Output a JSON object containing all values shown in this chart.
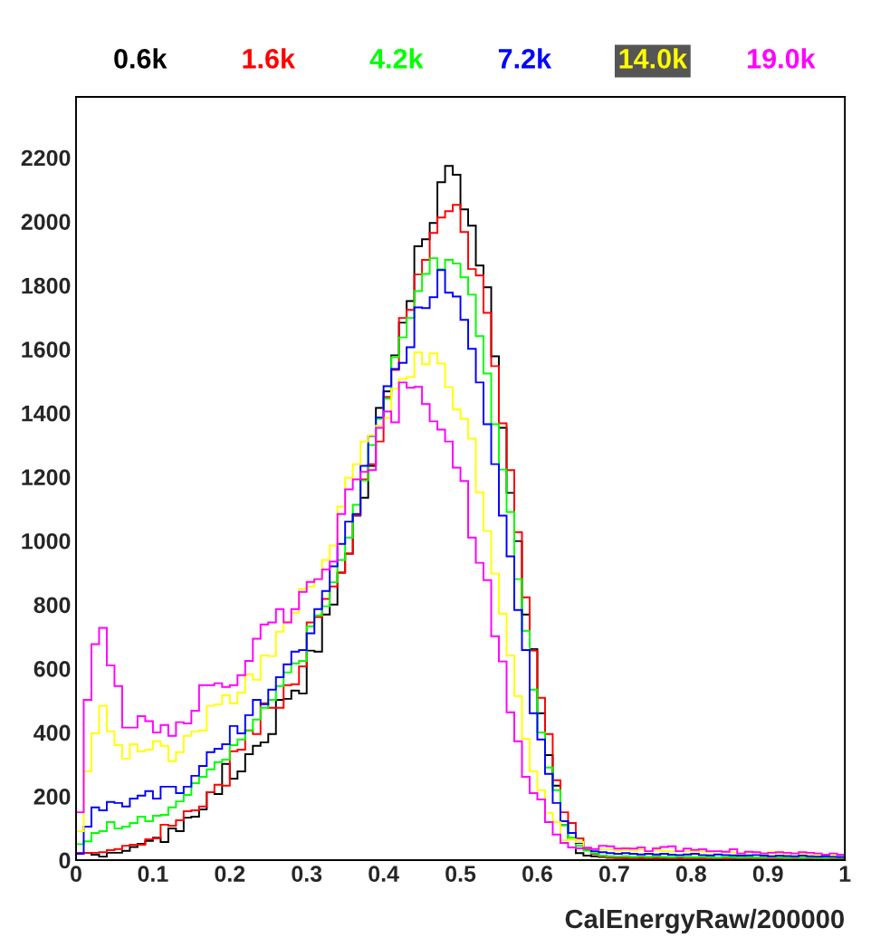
{
  "chart_data": {
    "type": "histogram",
    "xlabel": "CalEnergyRaw/200000",
    "bins": [
      0,
      0.01,
      0.02,
      0.03,
      0.04,
      0.05,
      0.06,
      0.07,
      0.08,
      0.09,
      0.1,
      0.11,
      0.12,
      0.13,
      0.14,
      0.15,
      0.16,
      0.17,
      0.18,
      0.19,
      0.2,
      0.21,
      0.22,
      0.23,
      0.24,
      0.25,
      0.26,
      0.27,
      0.28,
      0.29,
      0.3,
      0.31,
      0.32,
      0.33,
      0.34,
      0.35,
      0.36,
      0.37,
      0.38,
      0.39,
      0.4,
      0.41,
      0.42,
      0.43,
      0.44,
      0.45,
      0.46,
      0.47,
      0.48,
      0.49,
      0.5,
      0.51,
      0.52,
      0.53,
      0.54,
      0.55,
      0.56,
      0.57,
      0.58,
      0.59,
      0.6,
      0.61,
      0.62,
      0.63,
      0.64,
      0.65,
      0.66,
      0.67,
      0.68,
      0.69,
      0.7,
      0.71,
      0.72,
      0.73,
      0.74,
      0.75,
      0.76,
      0.77,
      0.78,
      0.79,
      0.8,
      0.81,
      0.82,
      0.83,
      0.84,
      0.85,
      0.86,
      0.87,
      0.88,
      0.89,
      0.9,
      0.91,
      0.92,
      0.93,
      0.94,
      0.95,
      0.96,
      0.97,
      0.98,
      0.99,
      1
    ],
    "series": [
      {
        "name": "0.6k",
        "color": "#000000",
        "values": [
          23,
          23,
          17,
          11,
          23,
          23,
          29,
          41,
          51,
          60,
          70,
          57,
          99,
          91,
          133,
          136,
          159,
          213,
          207,
          301,
          255,
          278,
          332,
          358,
          369,
          395,
          502,
          505,
          531,
          522,
          656,
          653,
          769,
          800,
          900,
          960,
          1079,
          1135,
          1235,
          1416,
          1468,
          1581,
          1683,
          1751,
          1922,
          1944,
          1995,
          2123,
          2174,
          2146,
          2038,
          1987,
          1862,
          1794,
          1578,
          1354,
          1150,
          999,
          769,
          661,
          460,
          329,
          233,
          110,
          65,
          22,
          14,
          12,
          10,
          8,
          8,
          6,
          8,
          6,
          5,
          6,
          5,
          6,
          5,
          4,
          6,
          5,
          4,
          5,
          4,
          5,
          4,
          4,
          5,
          4,
          3,
          4,
          4,
          3,
          4,
          3,
          4,
          3,
          3,
          4
        ]
      },
      {
        "name": "1.6k",
        "color": "#ff0000",
        "values": [
          23,
          23,
          23,
          25,
          31,
          35,
          45,
          48,
          48,
          65,
          68,
          111,
          108,
          125,
          153,
          156,
          168,
          213,
          236,
          233,
          341,
          346,
          406,
          395,
          491,
          477,
          477,
          548,
          551,
          607,
          744,
          761,
          818,
          857,
          900,
          960,
          1080,
          1192,
          1240,
          1311,
          1450,
          1535,
          1698,
          1723,
          1834,
          1880,
          1964,
          2012,
          2032,
          2052,
          1967,
          1851,
          1831,
          1714,
          1547,
          1368,
          1221,
          1027,
          823,
          656,
          508,
          395,
          250,
          150,
          116,
          68,
          34,
          20,
          12,
          8,
          6,
          7,
          5,
          6,
          5,
          5,
          6,
          4,
          5,
          5,
          4,
          5,
          4,
          4,
          5,
          4,
          4,
          3,
          4,
          4,
          3,
          4,
          3,
          3,
          4,
          3,
          3,
          3,
          4,
          3
        ]
      },
      {
        "name": "4.2k",
        "color": "#00ff00",
        "values": [
          50,
          59,
          85,
          91,
          119,
          99,
          105,
          116,
          136,
          122,
          139,
          142,
          165,
          184,
          204,
          241,
          261,
          284,
          307,
          315,
          360,
          378,
          406,
          440,
          477,
          502,
          545,
          588,
          616,
          624,
          732,
          766,
          795,
          870,
          940,
          1010,
          1113,
          1189,
          1300,
          1382,
          1445,
          1575,
          1637,
          1698,
          1782,
          1836,
          1885,
          1850,
          1880,
          1868,
          1825,
          1771,
          1641,
          1524,
          1365,
          1223,
          1090,
          880,
          718,
          534,
          400,
          290,
          219,
          110,
          70,
          45,
          30,
          22,
          14,
          12,
          11,
          12,
          10,
          11,
          10,
          12,
          10,
          9,
          11,
          10,
          9,
          10,
          9,
          8,
          10,
          9,
          8,
          9,
          8,
          8,
          9,
          8,
          7,
          8,
          7,
          8,
          7,
          7,
          8,
          7
        ]
      },
      {
        "name": "7.2k",
        "color": "#0000ff",
        "values": [
          20,
          105,
          165,
          156,
          182,
          179,
          168,
          193,
          202,
          216,
          193,
          230,
          230,
          210,
          230,
          264,
          295,
          338,
          349,
          363,
          420,
          397,
          454,
          502,
          488,
          534,
          573,
          613,
          653,
          658,
          710,
          786,
          843,
          920,
          990,
          1060,
          1084,
          1235,
          1328,
          1386,
          1484,
          1538,
          1557,
          1606,
          1731,
          1729,
          1763,
          1848,
          1777,
          1765,
          1692,
          1601,
          1496,
          1365,
          1240,
          1079,
          951,
          783,
          658,
          460,
          378,
          270,
          179,
          122,
          85,
          54,
          37,
          28,
          25,
          22,
          20,
          22,
          20,
          18,
          20,
          18,
          20,
          17,
          16,
          18,
          20,
          16,
          15,
          18,
          16,
          15,
          14,
          15,
          16,
          14,
          12,
          14,
          13,
          12,
          14,
          12,
          11,
          12,
          11,
          10
        ]
      },
      {
        "name": "14.0k",
        "color": "#ffff00",
        "values": [
          91,
          278,
          397,
          483,
          403,
          360,
          318,
          363,
          341,
          346,
          372,
          358,
          310,
          338,
          389,
          403,
          406,
          483,
          488,
          517,
          491,
          525,
          582,
          565,
          641,
          639,
          715,
          747,
          775,
          849,
          857,
          880,
          940,
          985,
          1107,
          1197,
          1240,
          1311,
          1330,
          1360,
          1385,
          1476,
          1507,
          1513,
          1590,
          1553,
          1587,
          1555,
          1481,
          1411,
          1382,
          1320,
          1152,
          1031,
          897,
          772,
          641,
          514,
          380,
          278,
          219,
          148,
          119,
          62,
          65,
          57,
          38,
          35,
          33,
          33,
          30,
          32,
          30,
          33,
          28,
          32,
          28,
          27,
          30,
          28,
          26,
          27,
          25,
          28,
          27,
          24,
          22,
          25,
          24,
          22,
          25,
          22,
          20,
          22,
          20,
          20,
          18,
          18,
          16,
          18
        ]
      },
      {
        "name": "19.0k",
        "color": "#ff00ff",
        "values": [
          150,
          502,
          676,
          727,
          610,
          545,
          415,
          415,
          451,
          435,
          400,
          423,
          389,
          432,
          428,
          468,
          548,
          548,
          554,
          542,
          548,
          579,
          624,
          693,
          738,
          744,
          786,
          744,
          786,
          840,
          871,
          880,
          910,
          935,
          1084,
          1161,
          1192,
          1216,
          1221,
          1354,
          1405,
          1371,
          1496,
          1479,
          1482,
          1428,
          1374,
          1348,
          1311,
          1229,
          1187,
          1010,
          931,
          877,
          701,
          622,
          463,
          372,
          261,
          210,
          190,
          119,
          80,
          54,
          40,
          37,
          39,
          35,
          45,
          43,
          36,
          37,
          36,
          40,
          28,
          37,
          41,
          43,
          28,
          36,
          32,
          34,
          28,
          28,
          26,
          34,
          21,
          26,
          25,
          21,
          23,
          25,
          23,
          21,
          25,
          23,
          21,
          17,
          21,
          17
        ]
      }
    ],
    "xlim": [
      0,
      1
    ],
    "ylim": [
      0,
      2390
    ],
    "xticks": [
      0,
      0.1,
      0.2,
      0.3,
      0.4,
      0.5,
      0.6,
      0.7,
      0.8,
      0.9,
      1
    ],
    "yticks": [
      0,
      200,
      400,
      600,
      800,
      1000,
      1200,
      1400,
      1600,
      1800,
      2000,
      2200
    ],
    "legend": "top",
    "grid": false
  }
}
